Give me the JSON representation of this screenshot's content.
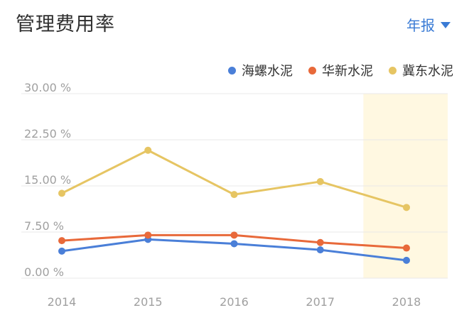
{
  "header": {
    "title": "管理费用率",
    "period_label": "年报",
    "accent_color": "#3a7bd5"
  },
  "chart_data": {
    "type": "line",
    "title": "管理费用率",
    "categories": [
      "2014",
      "2015",
      "2016",
      "2017",
      "2018"
    ],
    "y_ticks": [
      "0.00 %",
      "7.50 %",
      "15.00 %",
      "22.50 %",
      "30.00 %"
    ],
    "ylim": [
      0,
      30
    ],
    "grid": true,
    "legend_position": "top-right",
    "highlight_category": "2018",
    "highlight_color": "#fff8e1",
    "series": [
      {
        "name": "海螺水泥",
        "color": "#4a7fd8",
        "values": [
          4.4,
          6.3,
          5.6,
          4.6,
          2.9
        ]
      },
      {
        "name": "华新水泥",
        "color": "#e8693a",
        "values": [
          6.1,
          7.0,
          7.0,
          5.8,
          4.9
        ]
      },
      {
        "name": "冀东水泥",
        "color": "#e6c563",
        "values": [
          13.8,
          20.8,
          13.6,
          15.7,
          11.5
        ]
      }
    ]
  }
}
